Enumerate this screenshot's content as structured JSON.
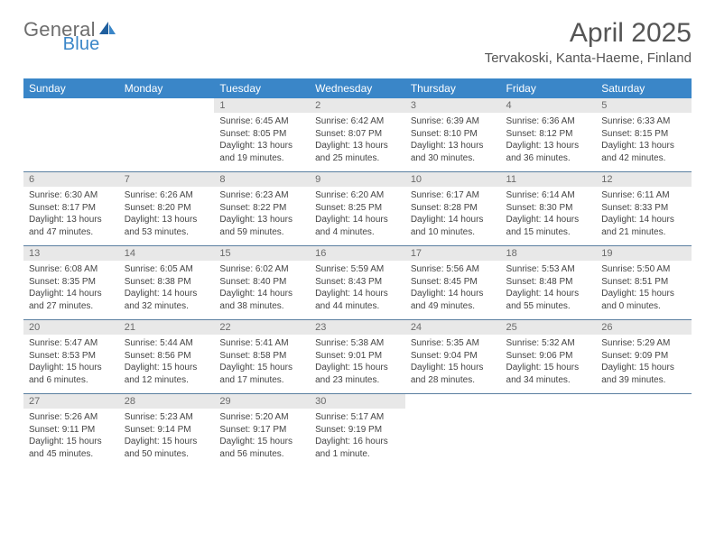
{
  "brand": {
    "name_part1": "General",
    "name_part2": "Blue"
  },
  "title": "April 2025",
  "location": "Tervakoski, Kanta-Haeme, Finland",
  "colors": {
    "header_bg": "#3a86c8",
    "header_text": "#ffffff",
    "daynum_bg": "#e8e8e8",
    "daynum_text": "#6a6a6a",
    "body_text": "#444444",
    "rule": "#5a7fa0",
    "logo_gray": "#6e6e6e",
    "logo_blue": "#3a86c8"
  },
  "weekdays": [
    "Sunday",
    "Monday",
    "Tuesday",
    "Wednesday",
    "Thursday",
    "Friday",
    "Saturday"
  ],
  "weeks": [
    [
      {
        "empty": true
      },
      {
        "empty": true
      },
      {
        "day": "1",
        "sunrise": "Sunrise: 6:45 AM",
        "sunset": "Sunset: 8:05 PM",
        "daylight": "Daylight: 13 hours and 19 minutes."
      },
      {
        "day": "2",
        "sunrise": "Sunrise: 6:42 AM",
        "sunset": "Sunset: 8:07 PM",
        "daylight": "Daylight: 13 hours and 25 minutes."
      },
      {
        "day": "3",
        "sunrise": "Sunrise: 6:39 AM",
        "sunset": "Sunset: 8:10 PM",
        "daylight": "Daylight: 13 hours and 30 minutes."
      },
      {
        "day": "4",
        "sunrise": "Sunrise: 6:36 AM",
        "sunset": "Sunset: 8:12 PM",
        "daylight": "Daylight: 13 hours and 36 minutes."
      },
      {
        "day": "5",
        "sunrise": "Sunrise: 6:33 AM",
        "sunset": "Sunset: 8:15 PM",
        "daylight": "Daylight: 13 hours and 42 minutes."
      }
    ],
    [
      {
        "day": "6",
        "sunrise": "Sunrise: 6:30 AM",
        "sunset": "Sunset: 8:17 PM",
        "daylight": "Daylight: 13 hours and 47 minutes."
      },
      {
        "day": "7",
        "sunrise": "Sunrise: 6:26 AM",
        "sunset": "Sunset: 8:20 PM",
        "daylight": "Daylight: 13 hours and 53 minutes."
      },
      {
        "day": "8",
        "sunrise": "Sunrise: 6:23 AM",
        "sunset": "Sunset: 8:22 PM",
        "daylight": "Daylight: 13 hours and 59 minutes."
      },
      {
        "day": "9",
        "sunrise": "Sunrise: 6:20 AM",
        "sunset": "Sunset: 8:25 PM",
        "daylight": "Daylight: 14 hours and 4 minutes."
      },
      {
        "day": "10",
        "sunrise": "Sunrise: 6:17 AM",
        "sunset": "Sunset: 8:28 PM",
        "daylight": "Daylight: 14 hours and 10 minutes."
      },
      {
        "day": "11",
        "sunrise": "Sunrise: 6:14 AM",
        "sunset": "Sunset: 8:30 PM",
        "daylight": "Daylight: 14 hours and 15 minutes."
      },
      {
        "day": "12",
        "sunrise": "Sunrise: 6:11 AM",
        "sunset": "Sunset: 8:33 PM",
        "daylight": "Daylight: 14 hours and 21 minutes."
      }
    ],
    [
      {
        "day": "13",
        "sunrise": "Sunrise: 6:08 AM",
        "sunset": "Sunset: 8:35 PM",
        "daylight": "Daylight: 14 hours and 27 minutes."
      },
      {
        "day": "14",
        "sunrise": "Sunrise: 6:05 AM",
        "sunset": "Sunset: 8:38 PM",
        "daylight": "Daylight: 14 hours and 32 minutes."
      },
      {
        "day": "15",
        "sunrise": "Sunrise: 6:02 AM",
        "sunset": "Sunset: 8:40 PM",
        "daylight": "Daylight: 14 hours and 38 minutes."
      },
      {
        "day": "16",
        "sunrise": "Sunrise: 5:59 AM",
        "sunset": "Sunset: 8:43 PM",
        "daylight": "Daylight: 14 hours and 44 minutes."
      },
      {
        "day": "17",
        "sunrise": "Sunrise: 5:56 AM",
        "sunset": "Sunset: 8:45 PM",
        "daylight": "Daylight: 14 hours and 49 minutes."
      },
      {
        "day": "18",
        "sunrise": "Sunrise: 5:53 AM",
        "sunset": "Sunset: 8:48 PM",
        "daylight": "Daylight: 14 hours and 55 minutes."
      },
      {
        "day": "19",
        "sunrise": "Sunrise: 5:50 AM",
        "sunset": "Sunset: 8:51 PM",
        "daylight": "Daylight: 15 hours and 0 minutes."
      }
    ],
    [
      {
        "day": "20",
        "sunrise": "Sunrise: 5:47 AM",
        "sunset": "Sunset: 8:53 PM",
        "daylight": "Daylight: 15 hours and 6 minutes."
      },
      {
        "day": "21",
        "sunrise": "Sunrise: 5:44 AM",
        "sunset": "Sunset: 8:56 PM",
        "daylight": "Daylight: 15 hours and 12 minutes."
      },
      {
        "day": "22",
        "sunrise": "Sunrise: 5:41 AM",
        "sunset": "Sunset: 8:58 PM",
        "daylight": "Daylight: 15 hours and 17 minutes."
      },
      {
        "day": "23",
        "sunrise": "Sunrise: 5:38 AM",
        "sunset": "Sunset: 9:01 PM",
        "daylight": "Daylight: 15 hours and 23 minutes."
      },
      {
        "day": "24",
        "sunrise": "Sunrise: 5:35 AM",
        "sunset": "Sunset: 9:04 PM",
        "daylight": "Daylight: 15 hours and 28 minutes."
      },
      {
        "day": "25",
        "sunrise": "Sunrise: 5:32 AM",
        "sunset": "Sunset: 9:06 PM",
        "daylight": "Daylight: 15 hours and 34 minutes."
      },
      {
        "day": "26",
        "sunrise": "Sunrise: 5:29 AM",
        "sunset": "Sunset: 9:09 PM",
        "daylight": "Daylight: 15 hours and 39 minutes."
      }
    ],
    [
      {
        "day": "27",
        "sunrise": "Sunrise: 5:26 AM",
        "sunset": "Sunset: 9:11 PM",
        "daylight": "Daylight: 15 hours and 45 minutes."
      },
      {
        "day": "28",
        "sunrise": "Sunrise: 5:23 AM",
        "sunset": "Sunset: 9:14 PM",
        "daylight": "Daylight: 15 hours and 50 minutes."
      },
      {
        "day": "29",
        "sunrise": "Sunrise: 5:20 AM",
        "sunset": "Sunset: 9:17 PM",
        "daylight": "Daylight: 15 hours and 56 minutes."
      },
      {
        "day": "30",
        "sunrise": "Sunrise: 5:17 AM",
        "sunset": "Sunset: 9:19 PM",
        "daylight": "Daylight: 16 hours and 1 minute."
      },
      {
        "empty": true
      },
      {
        "empty": true
      },
      {
        "empty": true
      }
    ]
  ]
}
